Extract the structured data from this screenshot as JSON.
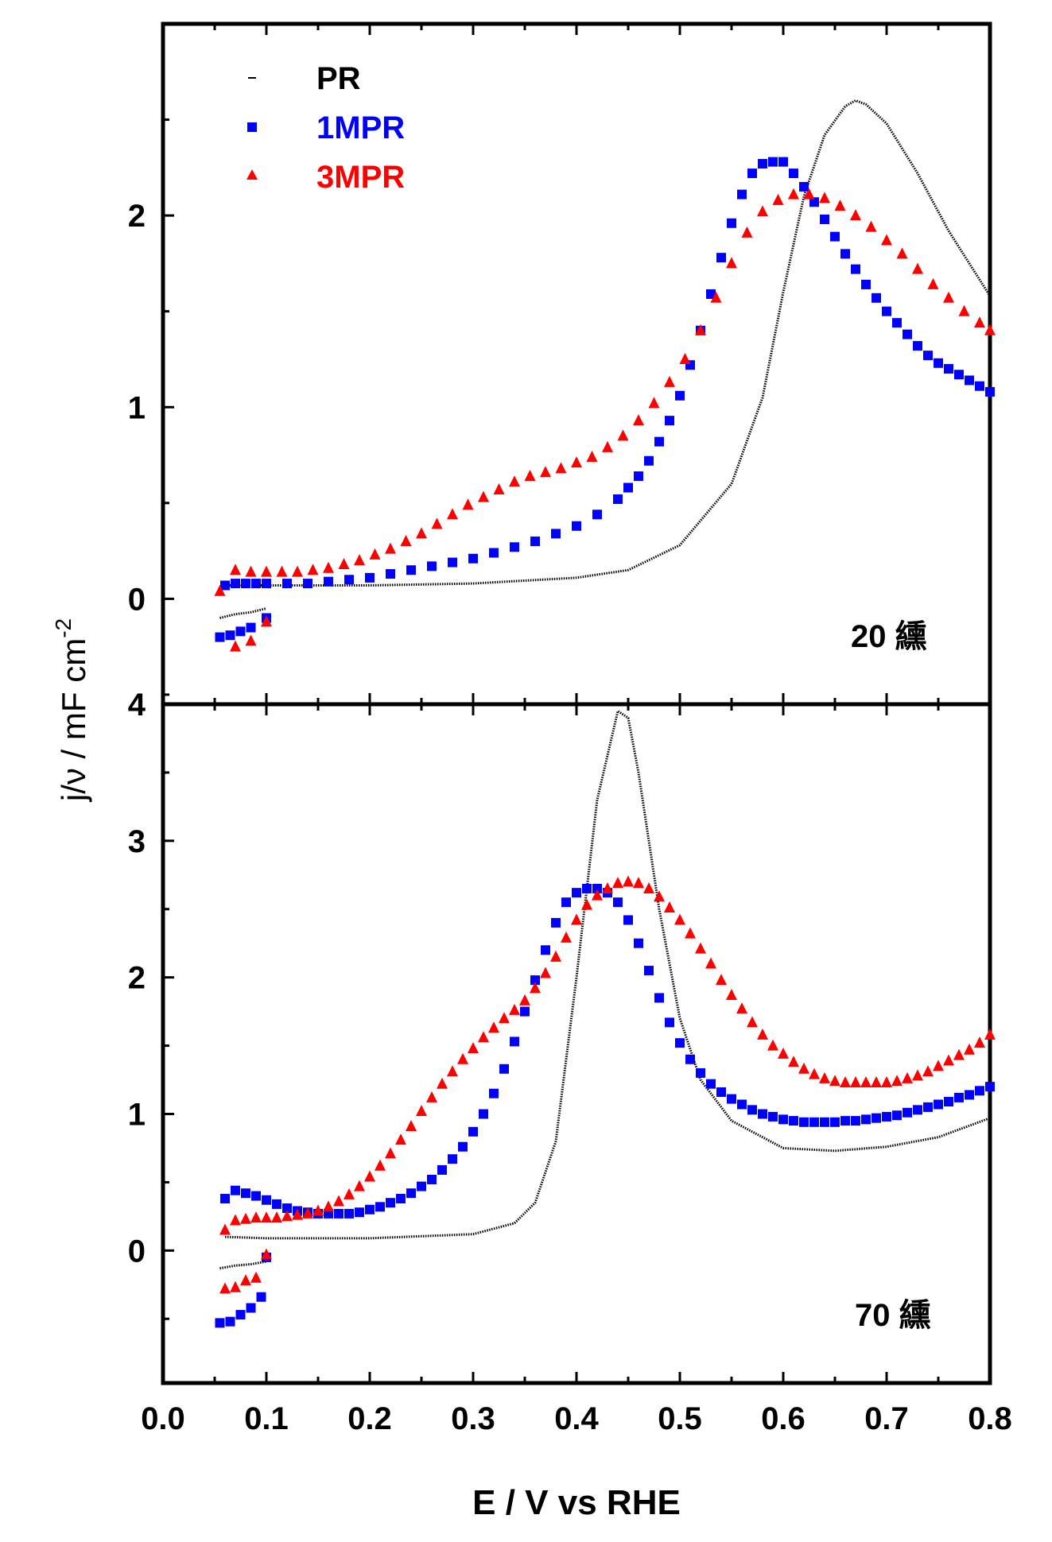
{
  "chart_data": [
    {
      "type": "scatter",
      "panel": "top",
      "annotation": "20 纁",
      "xlim": [
        0.0,
        0.8
      ],
      "ylim": [
        -0.55,
        3.0
      ],
      "yticks": [
        0,
        1,
        2
      ],
      "ytick_labels": [
        "0",
        "1",
        "2"
      ],
      "legend": [
        {
          "label": "PR",
          "color": "#000000",
          "marker": "dash"
        },
        {
          "label": "1MPR",
          "color": "#0000ff",
          "marker": "square"
        },
        {
          "label": "3MPR",
          "color": "#ff0000",
          "marker": "triangle"
        }
      ],
      "series": [
        {
          "name": "PR",
          "color": "#000000",
          "marker": "line",
          "x": [
            0.06,
            0.1,
            0.2,
            0.3,
            0.4,
            0.45,
            0.5,
            0.55,
            0.58,
            0.6,
            0.62,
            0.64,
            0.66,
            0.67,
            0.68,
            0.7,
            0.73,
            0.76,
            0.8
          ],
          "y": [
            0.07,
            0.07,
            0.07,
            0.08,
            0.11,
            0.15,
            0.28,
            0.6,
            1.05,
            1.6,
            2.1,
            2.42,
            2.57,
            2.6,
            2.58,
            2.48,
            2.22,
            1.92,
            1.58
          ]
        },
        {
          "name": "PR (cathodic branch)",
          "color": "#000000",
          "marker": "line",
          "x": [
            0.055,
            0.07,
            0.085,
            0.1
          ],
          "y": [
            -0.1,
            -0.08,
            -0.07,
            -0.05
          ]
        },
        {
          "name": "1MPR",
          "color": "#0000ff",
          "marker": "square",
          "x": [
            0.06,
            0.07,
            0.08,
            0.09,
            0.1,
            0.12,
            0.14,
            0.16,
            0.18,
            0.2,
            0.22,
            0.24,
            0.26,
            0.28,
            0.3,
            0.32,
            0.34,
            0.36,
            0.38,
            0.4,
            0.42,
            0.44,
            0.45,
            0.46,
            0.47,
            0.48,
            0.49,
            0.5,
            0.51,
            0.52,
            0.53,
            0.54,
            0.55,
            0.56,
            0.57,
            0.58,
            0.59,
            0.6,
            0.61,
            0.62,
            0.63,
            0.64,
            0.65,
            0.66,
            0.67,
            0.68,
            0.69,
            0.7,
            0.71,
            0.72,
            0.73,
            0.74,
            0.75,
            0.76,
            0.77,
            0.78,
            0.79,
            0.8
          ],
          "y": [
            0.07,
            0.08,
            0.08,
            0.08,
            0.08,
            0.08,
            0.08,
            0.09,
            0.1,
            0.11,
            0.13,
            0.15,
            0.17,
            0.19,
            0.21,
            0.24,
            0.27,
            0.3,
            0.34,
            0.38,
            0.44,
            0.52,
            0.58,
            0.64,
            0.72,
            0.82,
            0.93,
            1.06,
            1.22,
            1.4,
            1.59,
            1.78,
            1.96,
            2.11,
            2.22,
            2.27,
            2.28,
            2.28,
            2.22,
            2.15,
            2.07,
            1.98,
            1.89,
            1.8,
            1.72,
            1.64,
            1.57,
            1.5,
            1.44,
            1.38,
            1.32,
            1.27,
            1.23,
            1.2,
            1.17,
            1.14,
            1.11,
            1.08
          ]
        },
        {
          "name": "1MPR (cathodic branch)",
          "color": "#0000ff",
          "marker": "square",
          "x": [
            0.055,
            0.065,
            0.075,
            0.085,
            0.1
          ],
          "y": [
            -0.2,
            -0.19,
            -0.17,
            -0.15,
            -0.1
          ]
        },
        {
          "name": "3MPR",
          "color": "#ff0000",
          "marker": "triangle",
          "x": [
            0.055,
            0.07,
            0.085,
            0.1,
            0.115,
            0.13,
            0.145,
            0.16,
            0.175,
            0.19,
            0.205,
            0.22,
            0.235,
            0.25,
            0.265,
            0.28,
            0.295,
            0.31,
            0.325,
            0.34,
            0.355,
            0.37,
            0.385,
            0.4,
            0.415,
            0.43,
            0.445,
            0.46,
            0.475,
            0.49,
            0.505,
            0.52,
            0.535,
            0.55,
            0.565,
            0.58,
            0.595,
            0.61,
            0.625,
            0.64,
            0.655,
            0.67,
            0.685,
            0.7,
            0.715,
            0.73,
            0.745,
            0.76,
            0.775,
            0.79,
            0.8
          ],
          "y": [
            0.04,
            0.15,
            0.14,
            0.14,
            0.14,
            0.14,
            0.15,
            0.16,
            0.18,
            0.2,
            0.23,
            0.26,
            0.3,
            0.34,
            0.39,
            0.44,
            0.49,
            0.53,
            0.57,
            0.61,
            0.64,
            0.66,
            0.68,
            0.71,
            0.74,
            0.79,
            0.85,
            0.93,
            1.02,
            1.13,
            1.25,
            1.4,
            1.57,
            1.75,
            1.91,
            2.02,
            2.08,
            2.11,
            2.11,
            2.09,
            2.05,
            2.0,
            1.94,
            1.87,
            1.8,
            1.72,
            1.64,
            1.57,
            1.5,
            1.44,
            1.4
          ]
        },
        {
          "name": "3MPR (cathodic branch)",
          "color": "#ff0000",
          "marker": "triangle",
          "x": [
            0.07,
            0.085,
            0.1
          ],
          "y": [
            -0.25,
            -0.22,
            -0.12
          ]
        }
      ]
    },
    {
      "type": "scatter",
      "panel": "bottom",
      "annotation": "70 纁",
      "xlim": [
        0.0,
        0.8
      ],
      "ylim": [
        -0.97,
        4.0
      ],
      "xticks": [
        0.0,
        0.1,
        0.2,
        0.3,
        0.4,
        0.5,
        0.6,
        0.7,
        0.8
      ],
      "xtick_labels": [
        "0.0",
        "0.1",
        "0.2",
        "0.3",
        "0.4",
        "0.5",
        "0.6",
        "0.7",
        "0.8"
      ],
      "yticks": [
        0,
        1,
        2,
        3,
        4
      ],
      "ytick_labels": [
        "0",
        "1",
        "2",
        "3",
        "4"
      ],
      "series": [
        {
          "name": "PR",
          "color": "#000000",
          "marker": "line",
          "x": [
            0.06,
            0.1,
            0.2,
            0.3,
            0.34,
            0.36,
            0.38,
            0.4,
            0.42,
            0.44,
            0.45,
            0.46,
            0.48,
            0.5,
            0.52,
            0.55,
            0.6,
            0.65,
            0.7,
            0.75,
            0.8
          ],
          "y": [
            0.1,
            0.09,
            0.09,
            0.12,
            0.2,
            0.35,
            0.8,
            2.0,
            3.3,
            3.95,
            3.9,
            3.5,
            2.5,
            1.7,
            1.25,
            0.95,
            0.75,
            0.73,
            0.76,
            0.83,
            0.97
          ]
        },
        {
          "name": "PR (cathodic branch)",
          "color": "#000000",
          "marker": "line",
          "x": [
            0.055,
            0.07,
            0.085,
            0.1
          ],
          "y": [
            -0.13,
            -0.11,
            -0.1,
            -0.08
          ]
        },
        {
          "name": "1MPR",
          "color": "#0000ff",
          "marker": "square",
          "x": [
            0.06,
            0.07,
            0.08,
            0.09,
            0.1,
            0.11,
            0.12,
            0.13,
            0.14,
            0.15,
            0.16,
            0.17,
            0.18,
            0.19,
            0.2,
            0.21,
            0.22,
            0.23,
            0.24,
            0.25,
            0.26,
            0.27,
            0.28,
            0.29,
            0.3,
            0.31,
            0.32,
            0.33,
            0.34,
            0.35,
            0.36,
            0.37,
            0.38,
            0.39,
            0.4,
            0.41,
            0.42,
            0.43,
            0.44,
            0.45,
            0.46,
            0.47,
            0.48,
            0.49,
            0.5,
            0.51,
            0.52,
            0.53,
            0.54,
            0.55,
            0.56,
            0.57,
            0.58,
            0.59,
            0.6,
            0.61,
            0.62,
            0.63,
            0.64,
            0.65,
            0.66,
            0.67,
            0.68,
            0.69,
            0.7,
            0.71,
            0.72,
            0.73,
            0.74,
            0.75,
            0.76,
            0.77,
            0.78,
            0.79,
            0.8
          ],
          "y": [
            0.38,
            0.44,
            0.42,
            0.4,
            0.37,
            0.34,
            0.31,
            0.29,
            0.28,
            0.27,
            0.27,
            0.27,
            0.27,
            0.28,
            0.3,
            0.32,
            0.35,
            0.38,
            0.42,
            0.47,
            0.52,
            0.59,
            0.67,
            0.76,
            0.87,
            1.0,
            1.15,
            1.33,
            1.53,
            1.75,
            1.98,
            2.2,
            2.4,
            2.55,
            2.62,
            2.65,
            2.65,
            2.62,
            2.55,
            2.42,
            2.25,
            2.05,
            1.85,
            1.67,
            1.52,
            1.4,
            1.3,
            1.22,
            1.16,
            1.11,
            1.07,
            1.03,
            1.0,
            0.98,
            0.96,
            0.95,
            0.94,
            0.94,
            0.94,
            0.94,
            0.95,
            0.95,
            0.96,
            0.97,
            0.98,
            0.99,
            1.01,
            1.03,
            1.05,
            1.07,
            1.09,
            1.12,
            1.14,
            1.17,
            1.2
          ]
        },
        {
          "name": "1MPR (cathodic branch)",
          "color": "#0000ff",
          "marker": "square",
          "x": [
            0.055,
            0.065,
            0.075,
            0.085,
            0.095,
            0.1
          ],
          "y": [
            -0.53,
            -0.52,
            -0.47,
            -0.42,
            -0.34,
            -0.05
          ]
        },
        {
          "name": "3MPR",
          "color": "#ff0000",
          "marker": "triangle",
          "x": [
            0.06,
            0.07,
            0.08,
            0.09,
            0.1,
            0.11,
            0.12,
            0.13,
            0.14,
            0.15,
            0.16,
            0.17,
            0.18,
            0.19,
            0.2,
            0.21,
            0.22,
            0.23,
            0.24,
            0.25,
            0.26,
            0.27,
            0.28,
            0.29,
            0.3,
            0.31,
            0.32,
            0.33,
            0.34,
            0.35,
            0.36,
            0.37,
            0.38,
            0.39,
            0.4,
            0.41,
            0.42,
            0.43,
            0.44,
            0.45,
            0.46,
            0.47,
            0.48,
            0.49,
            0.5,
            0.51,
            0.52,
            0.53,
            0.54,
            0.55,
            0.56,
            0.57,
            0.58,
            0.59,
            0.6,
            0.61,
            0.62,
            0.63,
            0.64,
            0.65,
            0.66,
            0.67,
            0.68,
            0.69,
            0.7,
            0.71,
            0.72,
            0.73,
            0.74,
            0.75,
            0.76,
            0.77,
            0.78,
            0.79,
            0.8
          ],
          "y": [
            0.15,
            0.22,
            0.23,
            0.24,
            0.24,
            0.24,
            0.25,
            0.26,
            0.27,
            0.29,
            0.32,
            0.36,
            0.41,
            0.47,
            0.54,
            0.62,
            0.71,
            0.81,
            0.91,
            1.02,
            1.12,
            1.22,
            1.31,
            1.4,
            1.48,
            1.56,
            1.63,
            1.7,
            1.76,
            1.83,
            1.92,
            2.03,
            2.15,
            2.29,
            2.42,
            2.53,
            2.6,
            2.65,
            2.69,
            2.7,
            2.69,
            2.65,
            2.59,
            2.51,
            2.42,
            2.32,
            2.21,
            2.1,
            1.98,
            1.87,
            1.77,
            1.67,
            1.58,
            1.5,
            1.44,
            1.38,
            1.33,
            1.29,
            1.26,
            1.24,
            1.23,
            1.23,
            1.23,
            1.23,
            1.23,
            1.24,
            1.26,
            1.28,
            1.31,
            1.35,
            1.39,
            1.43,
            1.47,
            1.52,
            1.58
          ]
        },
        {
          "name": "3MPR (cathodic branch)",
          "color": "#ff0000",
          "marker": "triangle",
          "x": [
            0.06,
            0.07,
            0.08,
            0.09,
            0.1
          ],
          "y": [
            -0.28,
            -0.27,
            -0.22,
            -0.2,
            -0.03
          ]
        }
      ]
    }
  ],
  "shared": {
    "xlabel": "E / V vs RHE",
    "ylabel": "j/ν / mF cm",
    "ylabel_superscript": "-2"
  }
}
